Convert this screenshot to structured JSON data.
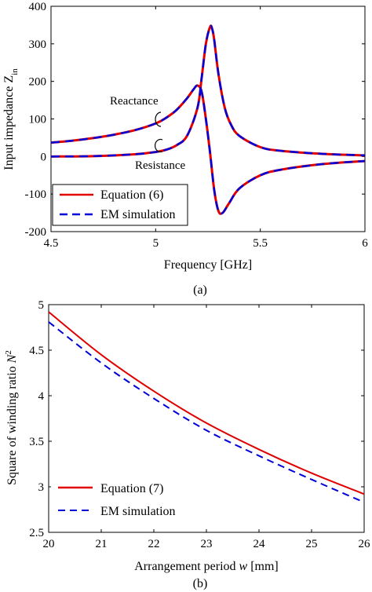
{
  "colors": {
    "equation": "#e00000",
    "em": "#0000d8"
  },
  "chart_data": [
    {
      "id": "a",
      "type": "line",
      "caption": "(a)",
      "xlabel": "Frequency [GHz]",
      "ylabel": "Input impedance Z",
      "ylabel_sub": "in",
      "xlim": [
        4.5,
        6
      ],
      "ylim": [
        -200,
        400
      ],
      "xticks": [
        4.5,
        5,
        5.5,
        6
      ],
      "xtick_labels": [
        "4.5",
        "5",
        "5.5",
        "6"
      ],
      "yticks": [
        -200,
        -100,
        0,
        100,
        200,
        300,
        400
      ],
      "ytick_labels": [
        "-200",
        "-100",
        "0",
        "100",
        "200",
        "300",
        "400"
      ],
      "legend": {
        "position": "bottom-left",
        "items": [
          "Equation (6)",
          "EM simulation"
        ]
      },
      "annotations": [
        "Reactance",
        "Resistance"
      ],
      "series": [
        {
          "name": "Equation (6)",
          "curves": {
            "reactance": {
              "x": [
                4.5,
                4.6,
                4.7,
                4.8,
                4.9,
                5.0,
                5.05,
                5.1,
                5.15,
                5.18,
                5.2,
                5.22,
                5.24,
                5.26,
                5.28,
                5.3,
                5.32,
                5.35,
                5.4,
                5.5,
                5.6,
                5.8,
                6.0
              ],
              "y": [
                37,
                42,
                49,
                58,
                70,
                88,
                103,
                124,
                155,
                178,
                189,
                172,
                100,
                10,
                -90,
                -145,
                -150,
                -125,
                -85,
                -50,
                -35,
                -20,
                -12
              ]
            },
            "resistance": {
              "x": [
                4.5,
                4.7,
                4.9,
                5.0,
                5.05,
                5.1,
                5.15,
                5.2,
                5.22,
                5.24,
                5.26,
                5.27,
                5.28,
                5.3,
                5.33,
                5.36,
                5.4,
                5.5,
                5.6,
                5.8,
                6.0
              ],
              "y": [
                0,
                1,
                6,
                12,
                18,
                30,
                55,
                130,
                210,
                300,
                345,
                340,
                310,
                220,
                130,
                85,
                55,
                25,
                15,
                7,
                3
              ]
            }
          }
        },
        {
          "name": "EM simulation",
          "curves": {
            "reactance": {
              "x": [
                4.5,
                4.6,
                4.7,
                4.8,
                4.9,
                5.0,
                5.05,
                5.1,
                5.15,
                5.18,
                5.2,
                5.22,
                5.24,
                5.26,
                5.28,
                5.3,
                5.32,
                5.35,
                5.4,
                5.5,
                5.6,
                5.8,
                6.0
              ],
              "y": [
                37,
                42,
                49,
                58,
                70,
                88,
                103,
                124,
                155,
                178,
                189,
                172,
                100,
                10,
                -90,
                -145,
                -150,
                -125,
                -85,
                -50,
                -35,
                -20,
                -12
              ]
            },
            "resistance": {
              "x": [
                4.5,
                4.7,
                4.9,
                5.0,
                5.05,
                5.1,
                5.15,
                5.2,
                5.22,
                5.24,
                5.26,
                5.27,
                5.28,
                5.3,
                5.33,
                5.36,
                5.4,
                5.5,
                5.6,
                5.8,
                6.0
              ],
              "y": [
                0,
                1,
                6,
                12,
                18,
                30,
                55,
                130,
                210,
                300,
                345,
                340,
                310,
                220,
                130,
                85,
                55,
                25,
                15,
                7,
                3
              ]
            }
          }
        }
      ]
    },
    {
      "id": "b",
      "type": "line",
      "caption": "(b)",
      "xlabel": "Arrangement period",
      "xlabel_var": "w",
      "xlabel_unit": "[mm]",
      "ylabel": "Square of winding ratio",
      "ylabel_var": "N",
      "ylabel_sup": "2",
      "xlim": [
        20,
        26
      ],
      "ylim": [
        2.5,
        5
      ],
      "xticks": [
        20,
        21,
        22,
        23,
        24,
        25,
        26
      ],
      "xtick_labels": [
        "20",
        "21",
        "22",
        "23",
        "24",
        "25",
        "26"
      ],
      "yticks": [
        2.5,
        3,
        3.5,
        4,
        4.5,
        5
      ],
      "ytick_labels": [
        "2.5",
        "3",
        "3.5",
        "4",
        "4.5",
        "5"
      ],
      "legend": {
        "position": "bottom-left",
        "items": [
          "Equation (7)",
          "EM simulation"
        ]
      },
      "series": [
        {
          "name": "Equation (7)",
          "x": [
            20,
            21,
            22,
            23,
            24,
            25,
            26
          ],
          "y": [
            4.92,
            4.45,
            4.05,
            3.7,
            3.41,
            3.15,
            2.92
          ]
        },
        {
          "name": "EM simulation",
          "x": [
            20,
            21,
            22,
            23,
            24,
            25,
            26
          ],
          "y": [
            4.81,
            4.36,
            3.97,
            3.62,
            3.34,
            3.08,
            2.83
          ]
        }
      ]
    }
  ]
}
